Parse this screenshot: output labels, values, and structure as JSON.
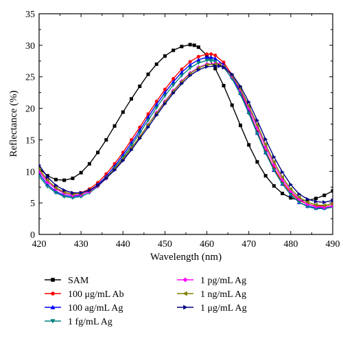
{
  "chart_data": {
    "type": "line",
    "title": "",
    "xlabel": "Wavelength (nm)",
    "ylabel": "Reflectance (%)",
    "xlim": [
      420,
      490
    ],
    "ylim": [
      0,
      35
    ],
    "xticks": [
      420,
      430,
      440,
      450,
      460,
      470,
      480,
      490
    ],
    "yticks": [
      0,
      5,
      10,
      15,
      20,
      25,
      30,
      35
    ],
    "grid": false,
    "legend_position": "below plot, two columns",
    "series": [
      {
        "name": "SAM",
        "color": "#000000",
        "marker": "square",
        "x": [
          420,
          422,
          424,
          426,
          428,
          430,
          432,
          434,
          436,
          438,
          440,
          442,
          444,
          446,
          448,
          450,
          452,
          454,
          456,
          457,
          458,
          460,
          462,
          464,
          466,
          468,
          470,
          472,
          474,
          476,
          478,
          480,
          482,
          484,
          486,
          488,
          490
        ],
        "y": [
          10.5,
          9.3,
          8.7,
          8.6,
          8.9,
          9.8,
          11.2,
          13.0,
          15.0,
          17.2,
          19.4,
          21.5,
          23.5,
          25.4,
          27.0,
          28.3,
          29.2,
          29.8,
          30.1,
          30.0,
          29.7,
          28.4,
          26.3,
          23.6,
          20.5,
          17.3,
          14.2,
          11.5,
          9.3,
          7.7,
          6.5,
          5.8,
          5.4,
          5.4,
          5.7,
          6.2,
          6.9
        ]
      },
      {
        "name": "100 μg/mL Ab",
        "color": "#ff0000",
        "marker": "circle",
        "x": [
          420,
          422,
          424,
          426,
          428,
          430,
          432,
          434,
          436,
          438,
          440,
          442,
          444,
          446,
          448,
          450,
          452,
          454,
          456,
          458,
          460,
          461,
          462,
          464,
          466,
          468,
          470,
          472,
          474,
          476,
          478,
          480,
          482,
          484,
          486,
          488,
          490
        ],
        "y": [
          10.3,
          8.6,
          7.4,
          6.7,
          6.4,
          6.6,
          7.2,
          8.2,
          9.6,
          11.2,
          13.0,
          15.0,
          17.0,
          19.1,
          21.1,
          23.0,
          24.7,
          26.2,
          27.4,
          28.2,
          28.6,
          28.6,
          28.4,
          27.3,
          25.3,
          22.6,
          19.6,
          16.3,
          13.2,
          10.5,
          8.3,
          6.6,
          5.4,
          4.8,
          4.5,
          4.5,
          4.8
        ]
      },
      {
        "name": "100 ag/mL Ag",
        "color": "#0000ff",
        "marker": "triangle-up",
        "x": [
          420,
          422,
          424,
          426,
          428,
          430,
          432,
          434,
          436,
          438,
          440,
          442,
          444,
          446,
          448,
          450,
          452,
          454,
          456,
          458,
          460,
          461,
          462,
          464,
          466,
          468,
          470,
          472,
          474,
          476,
          478,
          480,
          482,
          484,
          486,
          488,
          490
        ],
        "y": [
          9.6,
          7.9,
          6.8,
          6.2,
          6.0,
          6.2,
          6.9,
          7.9,
          9.2,
          10.8,
          12.6,
          14.5,
          16.5,
          18.6,
          20.6,
          22.5,
          24.2,
          25.7,
          26.9,
          27.7,
          28.1,
          28.1,
          27.9,
          26.9,
          25.0,
          22.4,
          19.4,
          16.1,
          13.0,
          10.2,
          8.0,
          6.3,
          5.1,
          4.5,
          4.2,
          4.2,
          4.5
        ]
      },
      {
        "name": "1 fg/mL Ag",
        "color": "#008080",
        "marker": "triangle-down",
        "x": [
          420,
          422,
          424,
          426,
          428,
          430,
          432,
          434,
          436,
          438,
          440,
          442,
          444,
          446,
          448,
          450,
          452,
          454,
          456,
          458,
          460,
          461,
          462,
          464,
          466,
          468,
          470,
          472,
          474,
          476,
          478,
          480,
          482,
          484,
          486,
          488,
          490
        ],
        "y": [
          9.2,
          7.6,
          6.6,
          6.0,
          5.8,
          6.0,
          6.6,
          7.6,
          8.9,
          10.5,
          12.2,
          14.1,
          16.1,
          18.1,
          20.1,
          22.0,
          23.7,
          25.2,
          26.4,
          27.2,
          27.6,
          27.6,
          27.4,
          26.5,
          24.7,
          22.2,
          19.2,
          16.0,
          12.9,
          10.2,
          8.0,
          6.3,
          5.1,
          4.4,
          4.1,
          4.1,
          4.3
        ]
      },
      {
        "name": "1 pg/mL Ag",
        "color": "#ff00ff",
        "marker": "diamond",
        "x": [
          420,
          422,
          424,
          426,
          428,
          430,
          432,
          434,
          436,
          438,
          440,
          442,
          444,
          446,
          448,
          450,
          452,
          454,
          456,
          458,
          460,
          462,
          463,
          464,
          466,
          468,
          470,
          472,
          474,
          476,
          478,
          480,
          482,
          484,
          486,
          488,
          490
        ],
        "y": [
          10.0,
          8.3,
          7.2,
          6.5,
          6.2,
          6.3,
          6.8,
          7.7,
          8.9,
          10.3,
          11.9,
          13.7,
          15.5,
          17.4,
          19.3,
          21.1,
          22.8,
          24.3,
          25.6,
          26.5,
          27.0,
          27.1,
          27.0,
          26.6,
          25.1,
          22.9,
          20.1,
          17.0,
          13.9,
          11.1,
          8.7,
          6.9,
          5.6,
          4.8,
          4.4,
          4.3,
          4.5
        ]
      },
      {
        "name": "1 ng/mL Ag",
        "color": "#808000",
        "marker": "triangle-left",
        "x": [
          420,
          422,
          424,
          426,
          428,
          430,
          432,
          434,
          436,
          438,
          440,
          442,
          444,
          446,
          448,
          450,
          452,
          454,
          456,
          458,
          460,
          462,
          463,
          464,
          466,
          468,
          470,
          472,
          474,
          476,
          478,
          480,
          482,
          484,
          486,
          488,
          490
        ],
        "y": [
          10.4,
          8.6,
          7.4,
          6.7,
          6.4,
          6.5,
          7.0,
          7.8,
          9.0,
          10.4,
          12.0,
          13.7,
          15.5,
          17.4,
          19.2,
          21.0,
          22.7,
          24.2,
          25.5,
          26.4,
          26.9,
          27.0,
          26.9,
          26.6,
          25.2,
          23.1,
          20.4,
          17.4,
          14.3,
          11.5,
          9.1,
          7.2,
          5.9,
          5.1,
          4.7,
          4.6,
          4.8
        ]
      },
      {
        "name": "1 μg/mL Ag",
        "color": "#000080",
        "marker": "triangle-right",
        "x": [
          420,
          422,
          424,
          426,
          428,
          430,
          432,
          434,
          436,
          438,
          440,
          442,
          444,
          446,
          448,
          450,
          452,
          454,
          456,
          458,
          460,
          462,
          463,
          464,
          466,
          468,
          470,
          472,
          474,
          476,
          478,
          480,
          482,
          484,
          486,
          488,
          490
        ],
        "y": [
          11.0,
          9.1,
          7.8,
          7.0,
          6.6,
          6.6,
          7.0,
          7.8,
          8.9,
          10.2,
          11.7,
          13.4,
          15.2,
          17.0,
          18.9,
          20.7,
          22.4,
          23.9,
          25.2,
          26.1,
          26.6,
          26.7,
          26.7,
          26.5,
          25.4,
          23.5,
          21.0,
          18.1,
          15.1,
          12.3,
          9.9,
          7.9,
          6.4,
          5.6,
          5.2,
          5.1,
          5.4
        ]
      }
    ]
  }
}
